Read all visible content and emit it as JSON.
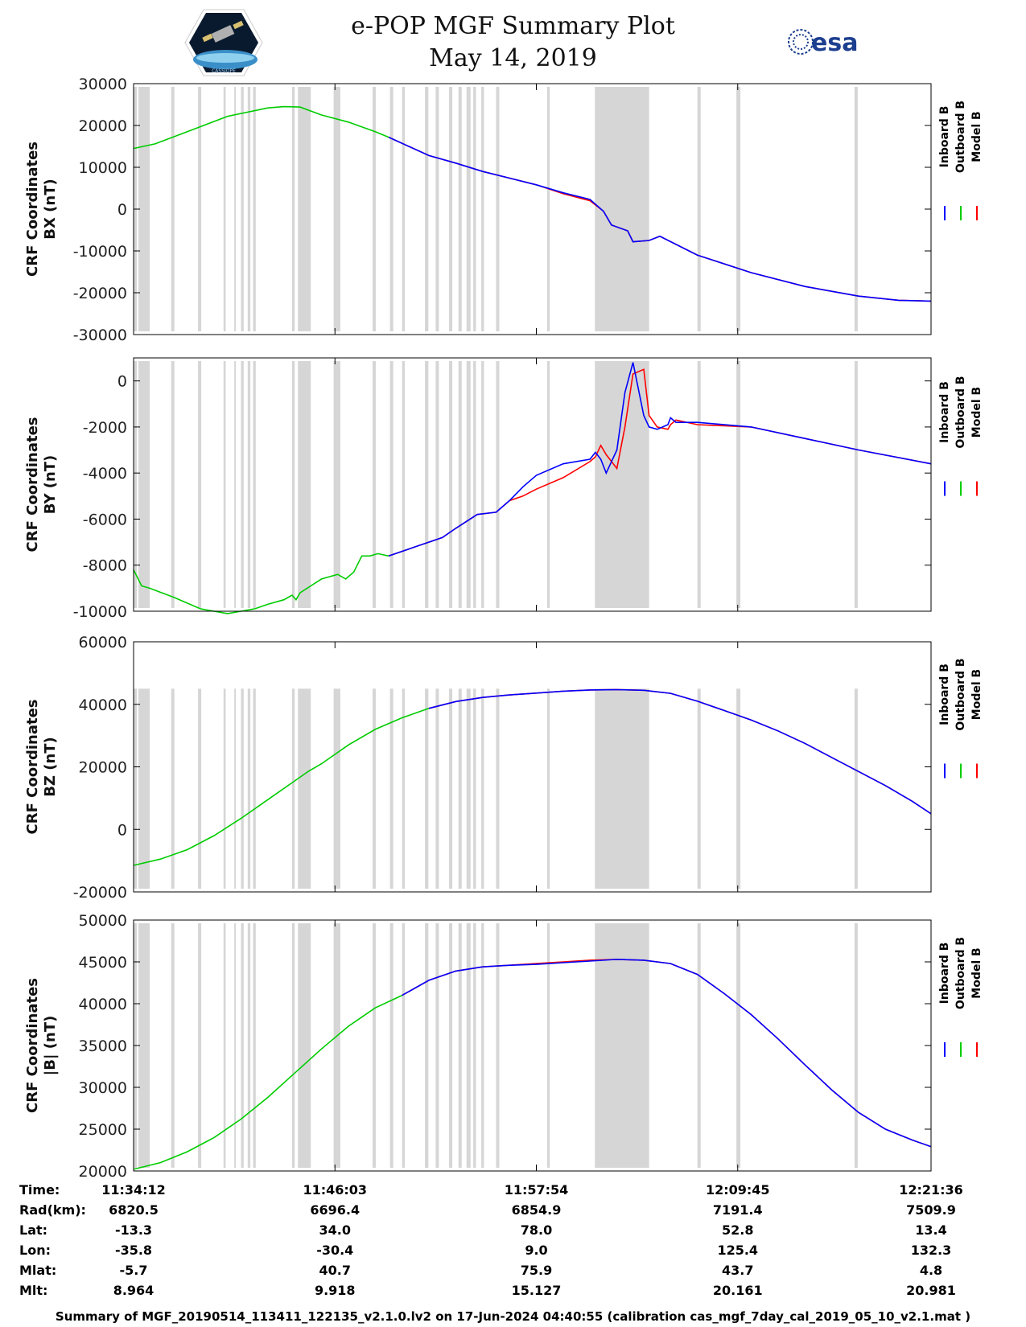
{
  "title": "e-POP MGF Summary Plot",
  "date": "May 14, 2019",
  "logos": {
    "left_caption": "CASSIOPE",
    "right_text": "esa"
  },
  "colors": {
    "inboard": "#0000ff",
    "outboard": "#00cc00",
    "model": "#ff0000",
    "shade": "#d6d6d6"
  },
  "chart_data": {
    "type": "line",
    "x_label": "Time",
    "x_range_seconds": [
      0,
      2970
    ],
    "shaded_intervals_seconds": [
      [
        0,
        12
      ],
      [
        18,
        60
      ],
      [
        140,
        152
      ],
      [
        240,
        252
      ],
      [
        335,
        343
      ],
      [
        375,
        380
      ],
      [
        400,
        410
      ],
      [
        425,
        435
      ],
      [
        445,
        455
      ],
      [
        590,
        600
      ],
      [
        612,
        660
      ],
      [
        745,
        770
      ],
      [
        890,
        902
      ],
      [
        955,
        967
      ],
      [
        1000,
        1010
      ],
      [
        1085,
        1098
      ],
      [
        1125,
        1137
      ],
      [
        1175,
        1187
      ],
      [
        1210,
        1222
      ],
      [
        1240,
        1255
      ],
      [
        1265,
        1275
      ],
      [
        1295,
        1305
      ],
      [
        1350,
        1362
      ],
      [
        1540,
        1550
      ],
      [
        1718,
        1920
      ],
      [
        2100,
        2112
      ],
      [
        2245,
        2260
      ],
      [
        2685,
        2697
      ]
    ],
    "legend": [
      "Inboard B",
      "Outboard B",
      "Model B"
    ],
    "panels": [
      {
        "ylabel": "CRF Coordinates BX (nT)",
        "ylabel_lines": [
          "CRF Coordinates",
          "BX (nT)"
        ],
        "ylim": [
          -30000,
          30000
        ],
        "yticks": [
          30000,
          20000,
          10000,
          0,
          -10000,
          -20000,
          -30000
        ],
        "ytick_labels": [
          "30000",
          "20000",
          "10000",
          "0",
          "-10000",
          "-20000",
          "-30000"
        ],
        "series": [
          {
            "name": "Outboard B",
            "x": [
              0,
              80,
              200,
              350,
              500,
              560,
              620,
              700,
              800,
              900,
              950
            ],
            "y": [
              14500,
              15600,
              18500,
              22200,
              24200,
              24500,
              24400,
              22500,
              20800,
              18500,
              17200
            ]
          },
          {
            "name": "Model B",
            "x": [
              950,
              1100,
              1200,
              1300,
              1500,
              1600,
              1700,
              1750,
              1780,
              1840,
              1860,
              1920,
              1960,
              2100,
              2300,
              2500,
              2700,
              2850,
              2970
            ],
            "y": [
              17200,
              12800,
              11000,
              9000,
              5800,
              3700,
              2000,
              -500,
              -3800,
              -5200,
              -7800,
              -7500,
              -6500,
              -11000,
              -15200,
              -18500,
              -20800,
              -21800,
              -22000
            ]
          },
          {
            "name": "Inboard B",
            "x": [
              950,
              1100,
              1200,
              1300,
              1500,
              1600,
              1700,
              1750,
              1780,
              1840,
              1860,
              1920,
              1960,
              2100,
              2300,
              2500,
              2700,
              2850,
              2970
            ],
            "y": [
              17200,
              12800,
              11000,
              9000,
              5800,
              3900,
              2300,
              -500,
              -3800,
              -5200,
              -7800,
              -7500,
              -6500,
              -11000,
              -15200,
              -18500,
              -20800,
              -21800,
              -22000
            ]
          }
        ]
      },
      {
        "ylabel": "CRF Coordinates BY (nT)",
        "ylabel_lines": [
          "CRF Coordinates",
          "BY (nT)"
        ],
        "ylim": [
          -10000,
          1000
        ],
        "yticks": [
          0,
          -2000,
          -4000,
          -6000,
          -8000,
          -10000
        ],
        "ytick_labels": [
          "0",
          "-2000",
          "-4000",
          "-6000",
          "-8000",
          "-10000"
        ],
        "series": [
          {
            "name": "Outboard B",
            "x": [
              0,
              30,
              60,
              150,
              250,
              350,
              400,
              450,
              500,
              560,
              590,
              605,
              620,
              660,
              700,
              760,
              790,
              820,
              850,
              880,
              910,
              950
            ],
            "y": [
              -8200,
              -8900,
              -9000,
              -9400,
              -9900,
              -10100,
              -10000,
              -9900,
              -9700,
              -9500,
              -9300,
              -9500,
              -9200,
              -8900,
              -8600,
              -8400,
              -8600,
              -8300,
              -7600,
              -7600,
              -7500,
              -7600
            ]
          },
          {
            "name": "Model B",
            "x": [
              950,
              1050,
              1150,
              1200,
              1280,
              1350,
              1400,
              1450,
              1500,
              1600,
              1700,
              1720,
              1740,
              1760,
              1800,
              1830,
              1860,
              1900,
              1920,
              1950,
              1990,
              2000,
              2020,
              2100,
              2300,
              2500,
              2700,
              2970
            ],
            "y": [
              -7600,
              -7200,
              -6800,
              -6400,
              -5800,
              -5700,
              -5200,
              -5000,
              -4700,
              -4200,
              -3500,
              -3300,
              -2800,
              -3200,
              -3800,
              -2000,
              300,
              500,
              -1500,
              -2000,
              -2100,
              -1900,
              -1700,
              -1900,
              -2000,
              -2500,
              -3000,
              -3600
            ]
          },
          {
            "name": "Inboard B",
            "x": [
              950,
              1050,
              1150,
              1200,
              1280,
              1350,
              1400,
              1450,
              1480,
              1500,
              1600,
              1700,
              1720,
              1740,
              1760,
              1800,
              1830,
              1860,
              1900,
              1920,
              1950,
              1990,
              2000,
              2020,
              2100,
              2300,
              2500,
              2700,
              2970
            ],
            "y": [
              -7600,
              -7200,
              -6800,
              -6400,
              -5800,
              -5700,
              -5200,
              -4600,
              -4300,
              -4100,
              -3600,
              -3400,
              -3100,
              -3400,
              -4000,
              -3000,
              -500,
              800,
              -1500,
              -2000,
              -2100,
              -1900,
              -1600,
              -1800,
              -1800,
              -2000,
              -2500,
              -3000,
              -3600
            ]
          }
        ]
      },
      {
        "ylabel": "CRF Coordinates BZ (nT)",
        "ylabel_lines": [
          "CRF Coordinates",
          "BZ (nT)"
        ],
        "ylim": [
          -20000,
          60000
        ],
        "yticks": [
          60000,
          40000,
          20000,
          0,
          -20000
        ],
        "ytick_labels": [
          "60000",
          "40000",
          "20000",
          "0",
          "-20000"
        ],
        "series": [
          {
            "name": "Outboard B",
            "x": [
              0,
              100,
              200,
              300,
              400,
              500,
              600,
              650,
              700,
              800,
              900,
              1000,
              1100
            ],
            "y": [
              -11500,
              -9500,
              -6500,
              -2000,
              3500,
              9500,
              15500,
              18500,
              21000,
              27000,
              32000,
              35700,
              38700
            ]
          },
          {
            "name": "Model B",
            "x": [
              1100,
              1200,
              1300,
              1400,
              1500,
              1600,
              1700,
              1800,
              1900,
              2000,
              2100,
              2200,
              2300,
              2400,
              2500,
              2600,
              2700,
              2800,
              2900,
              2970
            ],
            "y": [
              38700,
              40900,
              42200,
              43000,
              43600,
              44200,
              44600,
              44700,
              44500,
              43500,
              41000,
              38000,
              35000,
              31500,
              27500,
              23000,
              18500,
              14000,
              9000,
              5000
            ]
          },
          {
            "name": "Inboard B",
            "x": [
              1100,
              1200,
              1300,
              1400,
              1500,
              1600,
              1700,
              1800,
              1900,
              2000,
              2100,
              2200,
              2300,
              2400,
              2500,
              2600,
              2700,
              2800,
              2900,
              2970
            ],
            "y": [
              38700,
              40900,
              42200,
              43000,
              43600,
              44200,
              44600,
              44700,
              44500,
              43500,
              41000,
              38000,
              35000,
              31500,
              27500,
              23000,
              18500,
              14000,
              9000,
              5000
            ]
          }
        ]
      },
      {
        "ylabel": "CRF Coordinates |B| (nT)",
        "ylabel_lines": [
          "CRF Coordinates",
          "|B| (nT)"
        ],
        "ylim": [
          20000,
          50000
        ],
        "yticks": [
          50000,
          45000,
          40000,
          35000,
          30000,
          25000,
          20000
        ],
        "ytick_labels": [
          "50000",
          "45000",
          "40000",
          "35000",
          "30000",
          "25000",
          "20000"
        ],
        "series": [
          {
            "name": "Outboard B",
            "x": [
              0,
              100,
              200,
              300,
              400,
              500,
              600,
              700,
              800,
              900,
              1000
            ],
            "y": [
              20200,
              21000,
              22300,
              24000,
              26200,
              28800,
              31700,
              34600,
              37300,
              39500,
              41000
            ]
          },
          {
            "name": "Model B",
            "x": [
              1000,
              1100,
              1200,
              1300,
              1400,
              1500,
              1600,
              1700,
              1800,
              1900,
              2000,
              2100,
              2200,
              2300,
              2400,
              2500,
              2600,
              2700,
              2800,
              2900,
              2970
            ],
            "y": [
              41000,
              42800,
              43900,
              44400,
              44600,
              44800,
              45000,
              45200,
              45300,
              45200,
              44800,
              43500,
              41200,
              38700,
              35800,
              32700,
              29700,
              27000,
              25000,
              23700,
              22900
            ]
          },
          {
            "name": "Inboard B",
            "x": [
              1000,
              1100,
              1200,
              1300,
              1400,
              1500,
              1600,
              1700,
              1800,
              1900,
              2000,
              2100,
              2200,
              2300,
              2400,
              2500,
              2600,
              2700,
              2800,
              2900,
              2970
            ],
            "y": [
              41000,
              42800,
              43900,
              44400,
              44600,
              44700,
              44900,
              45100,
              45300,
              45200,
              44800,
              43500,
              41200,
              38700,
              35800,
              32700,
              29700,
              27000,
              25000,
              23700,
              22900
            ]
          }
        ]
      }
    ]
  },
  "ephemeris": {
    "row_labels": [
      "Time:",
      "Rad(km):",
      "Lat:",
      "Lon:",
      "Mlat:",
      "Mlt:"
    ],
    "columns": [
      [
        "11:34:12",
        "6820.5",
        "-13.3",
        "-35.8",
        "-5.7",
        "8.964"
      ],
      [
        "11:46:03",
        "6696.4",
        "34.0",
        "-30.4",
        "40.7",
        "9.918"
      ],
      [
        "11:57:54",
        "6854.9",
        "78.0",
        "9.0",
        "75.9",
        "15.127"
      ],
      [
        "12:09:45",
        "7191.4",
        "52.8",
        "125.4",
        "43.7",
        "20.161"
      ],
      [
        "12:21:36",
        "7509.9",
        "13.4",
        "132.3",
        "4.8",
        "20.981"
      ]
    ]
  },
  "footer": "Summary of MGF_20190514_113411_122135_v2.1.0.lv2 on 17-Jun-2024 04:40:55 (calibration cas_mgf_7day_cal_2019_05_10_v2.1.mat )"
}
